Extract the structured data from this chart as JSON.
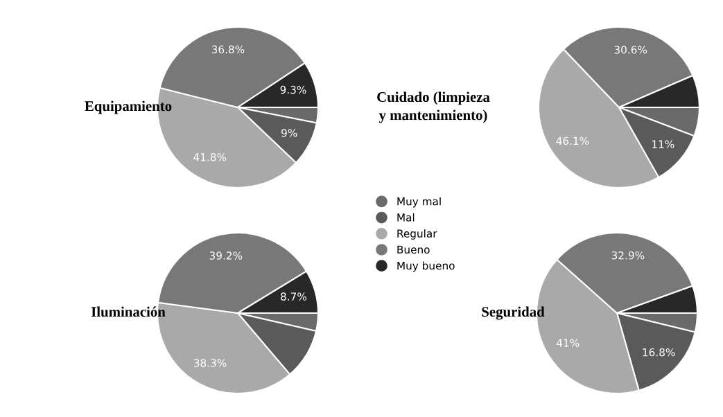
{
  "chart_data": [
    {
      "type": "pie",
      "title": "Equipamiento",
      "categories": [
        "Muy mal",
        "Mal",
        "Regular",
        "Bueno",
        "Muy bueno"
      ],
      "values": [
        3.1,
        9,
        41.8,
        36.8,
        9.3
      ],
      "colors": [
        "#6a6a6a",
        "#5a5a5a",
        "#a9a9a9",
        "#787878",
        "#282828"
      ],
      "value_labels": [
        null,
        "9%",
        "41.8%",
        "36.8%",
        "9.3%"
      ],
      "legend": "right"
    },
    {
      "type": "pie",
      "title": "Cuidado (limpieza y mantenimiento)",
      "categories": [
        null,
        null,
        null,
        null,
        null
      ],
      "values": [
        5.8,
        11,
        46.1,
        30.6,
        6.5
      ],
      "colors": [
        "#6a6a6a",
        "#5a5a5a",
        "#a9a9a9",
        "#787878",
        "#282828"
      ],
      "value_labels": [
        null,
        "11%",
        "46.1%",
        "30.6%",
        null
      ]
    },
    {
      "type": "pie",
      "title": "Iluminación",
      "categories": [
        null,
        null,
        null,
        null,
        null
      ],
      "values": [
        3.6,
        10.2,
        38.3,
        39.2,
        8.7
      ],
      "colors": [
        "#6a6a6a",
        "#5a5a5a",
        "#a9a9a9",
        "#787878",
        "#282828"
      ],
      "value_labels": [
        null,
        null,
        "38.3%",
        "39.2%",
        "8.7%"
      ]
    },
    {
      "type": "pie",
      "title": "Seguridad",
      "categories": [
        null,
        null,
        null,
        null,
        null
      ],
      "values": [
        3.8,
        16.8,
        41,
        32.9,
        5.5
      ],
      "colors": [
        "#6a6a6a",
        "#5a5a5a",
        "#a9a9a9",
        "#787878",
        "#282828"
      ],
      "value_labels": [
        null,
        "16.8%",
        "41%",
        "32.9%",
        null
      ]
    }
  ]
}
